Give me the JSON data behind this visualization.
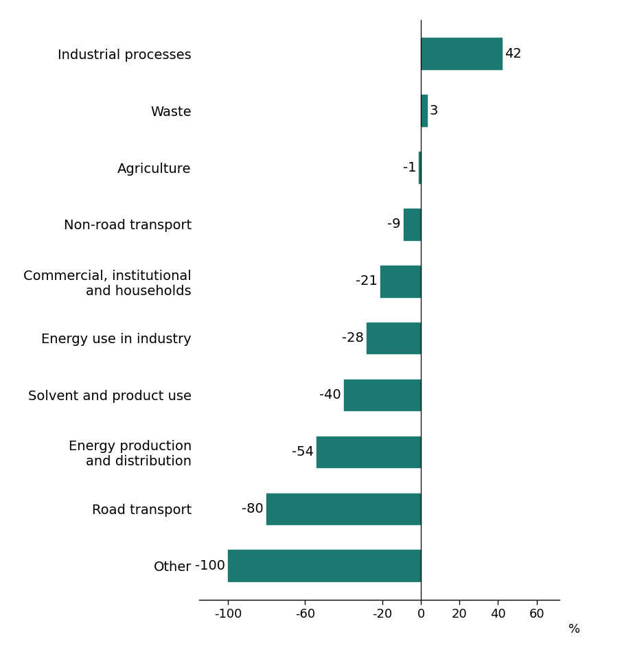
{
  "categories": [
    "Industrial processes",
    "Waste",
    "Agriculture",
    "Non-road transport",
    "Commercial, institutional\nand households",
    "Energy use in industry",
    "Solvent and product use",
    "Energy production\nand distribution",
    "Road transport",
    "Other"
  ],
  "values": [
    42,
    3,
    -1,
    -9,
    -21,
    -28,
    -40,
    -54,
    -80,
    -100
  ],
  "bar_color": "#1a7a72",
  "value_labels": [
    "42",
    "3",
    "-1",
    "-9",
    "-21",
    "-28",
    "-40",
    "-54",
    "-80",
    "-100"
  ],
  "xlabel": "%",
  "xlim": [
    -115,
    72
  ],
  "xticks": [
    -100,
    -60,
    -20,
    0,
    20,
    40,
    60
  ],
  "xticklabels": [
    "-100",
    "-60",
    "-20",
    "0",
    "20",
    "40",
    "60"
  ],
  "background_color": "#ffffff",
  "bar_height": 0.55,
  "label_fontsize": 14,
  "tick_fontsize": 13,
  "xlabel_fontsize": 13
}
